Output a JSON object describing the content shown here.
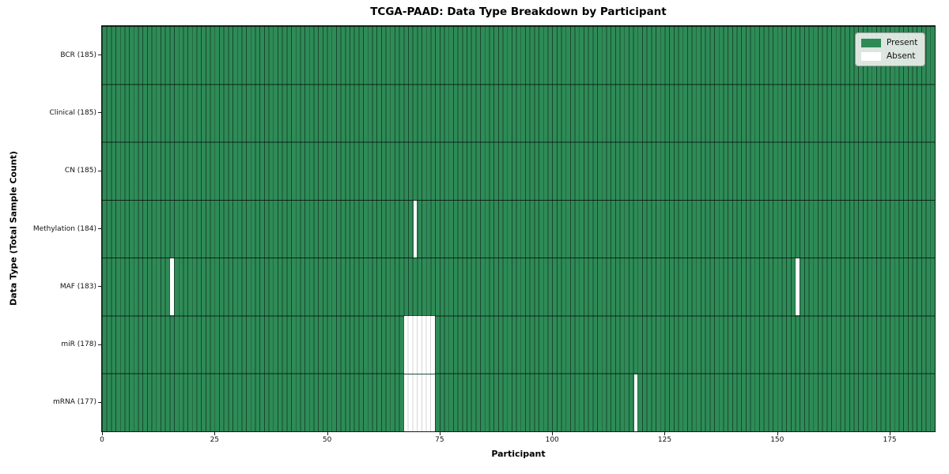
{
  "chart_data": {
    "type": "heatmap",
    "title": "TCGA-PAAD: Data Type Breakdown by Participant",
    "xlabel": "Participant",
    "ylabel": "Data Type (Total Sample Count)",
    "x_range": [
      0,
      185
    ],
    "n_participants": 185,
    "x_ticks": [
      0,
      25,
      50,
      75,
      100,
      125,
      150,
      175
    ],
    "grid": "cell-edges",
    "legend_position": "upper right",
    "rows": [
      {
        "name": "BCR",
        "label": "BCR (185)",
        "present_count": 185,
        "absent_participants": []
      },
      {
        "name": "Clinical",
        "label": "Clinical (185)",
        "present_count": 185,
        "absent_participants": []
      },
      {
        "name": "CN",
        "label": "CN (185)",
        "present_count": 185,
        "absent_participants": []
      },
      {
        "name": "Methylation",
        "label": "Methylation (184)",
        "present_count": 184,
        "absent_participants": [
          69
        ]
      },
      {
        "name": "MAF",
        "label": "MAF (183)",
        "present_count": 183,
        "absent_participants": [
          15,
          154
        ]
      },
      {
        "name": "miR",
        "label": "miR (178)",
        "present_count": 178,
        "absent_participants": [
          67,
          68,
          69,
          70,
          71,
          72,
          73
        ]
      },
      {
        "name": "mRNA",
        "label": "mRNA (177)",
        "present_count": 177,
        "absent_participants": [
          67,
          68,
          69,
          70,
          71,
          72,
          73,
          118
        ]
      }
    ],
    "legend": [
      {
        "label": "Present",
        "color": "#2e8b57"
      },
      {
        "label": "Absent",
        "color": "#ffffff"
      }
    ],
    "colors": {
      "present": "#2e8b57",
      "absent": "#ffffff",
      "cell_edge": "#1d3b2a"
    }
  }
}
